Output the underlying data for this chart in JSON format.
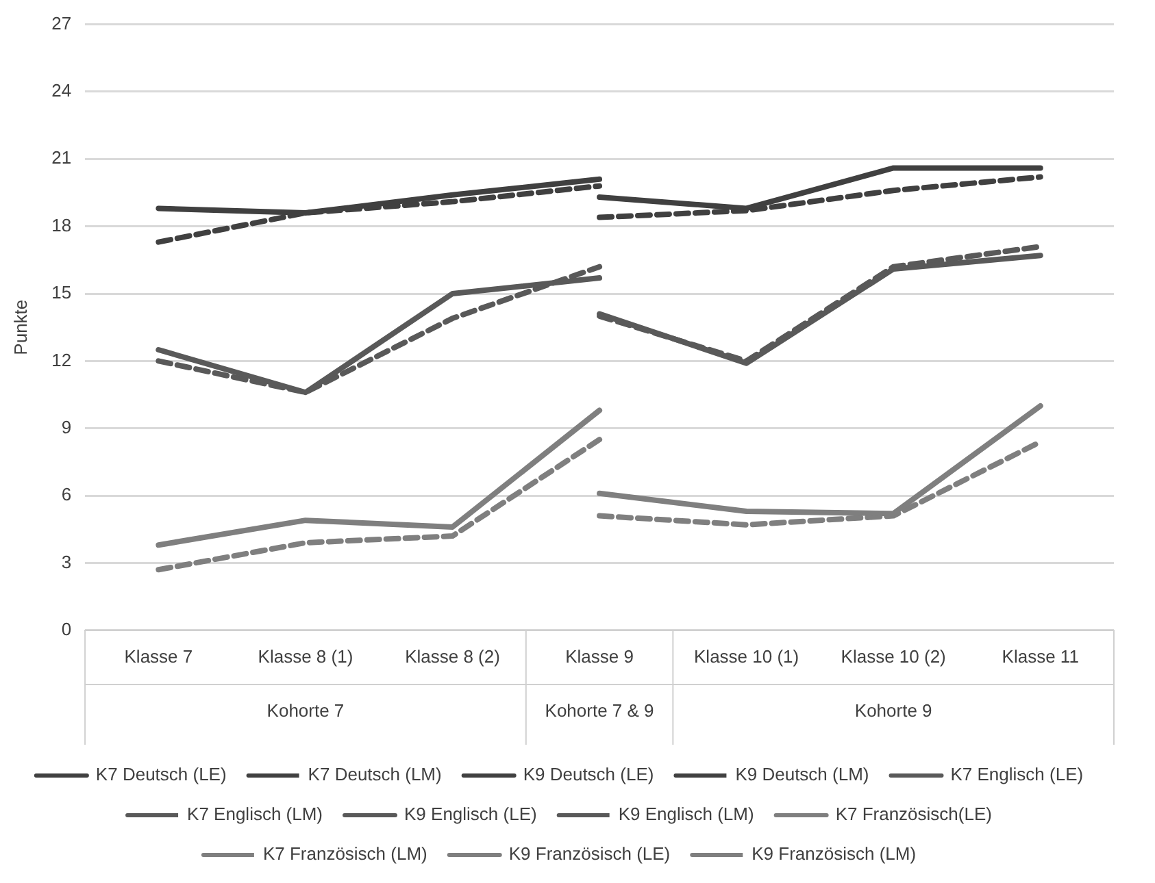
{
  "chart_data": {
    "type": "line",
    "ylabel": "Punkte",
    "categories": [
      "Klasse 7",
      "Klasse 8 (1)",
      "Klasse 8 (2)",
      "Klasse 9",
      "Klasse 10 (1)",
      "Klasse 10 (2)",
      "Klasse 11"
    ],
    "annotations": [
      "Kohorte 7",
      "Kohorte 7 & 9",
      "Kohorte 9"
    ],
    "series": [
      {
        "name": "K7 Deutsch (LE)",
        "color": "#404040",
        "line_style": "solid",
        "values": [
          18.8,
          18.6,
          19.4,
          20.1,
          null,
          null,
          null
        ]
      },
      {
        "name": "K7 Deutsch (LM)",
        "color": "#404040",
        "line_style": "dashed",
        "values": [
          17.3,
          18.6,
          19.1,
          19.8,
          null,
          null,
          null
        ]
      },
      {
        "name": "K9 Deutsch (LE)",
        "color": "#404040",
        "line_style": "solid",
        "values": [
          null,
          null,
          null,
          19.3,
          18.8,
          20.6,
          20.6
        ]
      },
      {
        "name": "K9 Deutsch (LM)",
        "color": "#404040",
        "line_style": "dashed",
        "values": [
          null,
          null,
          null,
          18.4,
          18.7,
          19.6,
          20.2
        ]
      },
      {
        "name": "K7 Englisch (LE)",
        "color": "#595959",
        "line_style": "solid",
        "values": [
          12.5,
          10.6,
          15.0,
          15.7,
          null,
          null,
          null
        ]
      },
      {
        "name": "K7 Englisch (LM)",
        "color": "#595959",
        "line_style": "dashed",
        "values": [
          12.0,
          10.6,
          13.9,
          16.2,
          null,
          null,
          null
        ]
      },
      {
        "name": "K9 Englisch (LE)",
        "color": "#595959",
        "line_style": "solid",
        "values": [
          null,
          null,
          null,
          14.1,
          11.9,
          16.1,
          16.7
        ]
      },
      {
        "name": "K9 Englisch (LM)",
        "color": "#595959",
        "line_style": "dashed",
        "values": [
          null,
          null,
          null,
          14.0,
          12.0,
          16.2,
          17.1
        ]
      },
      {
        "name": "K7 Französisch(LE)",
        "color": "#7f7f7f",
        "line_style": "solid",
        "values": [
          3.8,
          4.9,
          4.6,
          9.8,
          null,
          null,
          null
        ]
      },
      {
        "name": "K7 Französisch (LM)",
        "color": "#7f7f7f",
        "line_style": "dashed",
        "values": [
          2.7,
          3.9,
          4.2,
          8.5,
          null,
          null,
          null
        ]
      },
      {
        "name": "K9 Französisch (LE)",
        "color": "#7f7f7f",
        "line_style": "solid",
        "values": [
          null,
          null,
          null,
          6.1,
          5.3,
          5.2,
          10.0
        ]
      },
      {
        "name": "K9 Französisch (LM)",
        "color": "#7f7f7f",
        "line_style": "dashed",
        "values": [
          null,
          null,
          null,
          5.1,
          4.7,
          5.1,
          8.4
        ]
      }
    ],
    "ylim": [
      0,
      27
    ],
    "yticks": [
      0,
      3,
      6,
      9,
      12,
      15,
      18,
      21,
      24,
      27
    ],
    "grid": "y",
    "legend": "bottom",
    "marker": "none"
  }
}
